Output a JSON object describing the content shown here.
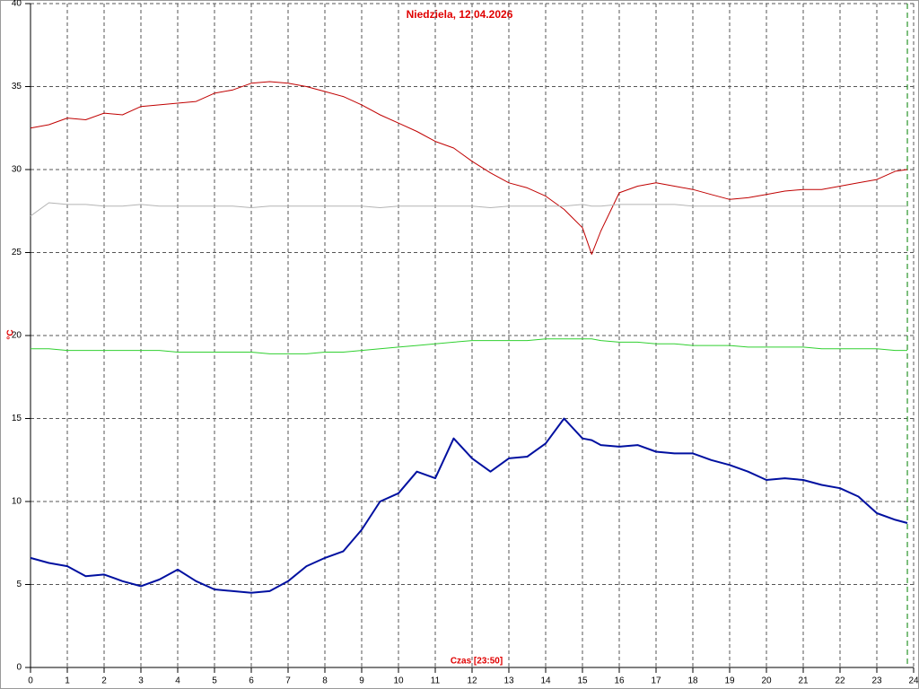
{
  "chart_data": {
    "type": "line",
    "title": "Niedziela, 12.04.2026",
    "y_label": "°C",
    "x_label": "Czas [23:50]",
    "x": [
      0,
      0.5,
      1,
      1.5,
      2,
      2.5,
      3,
      3.5,
      4,
      4.5,
      5,
      5.5,
      6,
      6.5,
      7,
      7.5,
      8,
      8.5,
      9,
      9.5,
      10,
      10.5,
      11,
      11.5,
      12,
      12.5,
      13,
      13.5,
      14,
      14.5,
      15,
      15.25,
      15.5,
      16,
      16.5,
      17,
      17.5,
      18,
      18.5,
      19,
      19.5,
      20,
      20.5,
      21,
      21.5,
      22,
      22.5,
      23,
      23.5,
      23.83
    ],
    "series": [
      {
        "color": "#c00000",
        "width": 1,
        "values": [
          32.5,
          32.7,
          33.1,
          33.0,
          33.4,
          33.3,
          33.8,
          33.9,
          34.0,
          34.1,
          34.6,
          34.8,
          35.2,
          35.3,
          35.2,
          35.0,
          34.7,
          34.4,
          33.9,
          33.3,
          32.8,
          32.3,
          31.7,
          31.3,
          30.5,
          29.8,
          29.2,
          28.9,
          28.4,
          27.6,
          26.5,
          24.9,
          26.3,
          28.6,
          29.0,
          29.2,
          29.0,
          28.8,
          28.5,
          28.2,
          28.3,
          28.5,
          28.7,
          28.8,
          28.8,
          29.0,
          29.2,
          29.4,
          29.9,
          30.0
        ]
      },
      {
        "color": "#b4b4b4",
        "width": 1,
        "values": [
          27.2,
          28.0,
          27.9,
          27.9,
          27.8,
          27.8,
          27.9,
          27.8,
          27.8,
          27.8,
          27.8,
          27.8,
          27.7,
          27.8,
          27.8,
          27.8,
          27.8,
          27.8,
          27.8,
          27.7,
          27.8,
          27.8,
          27.8,
          27.8,
          27.8,
          27.7,
          27.8,
          27.8,
          27.8,
          27.8,
          27.9,
          27.8,
          27.8,
          27.9,
          27.9,
          27.9,
          27.9,
          27.8,
          27.8,
          27.8,
          27.8,
          27.8,
          27.8,
          27.8,
          27.8,
          27.8,
          27.8,
          27.8,
          27.8,
          27.8
        ]
      },
      {
        "color": "#30d030",
        "width": 1,
        "values": [
          19.2,
          19.2,
          19.1,
          19.1,
          19.1,
          19.1,
          19.1,
          19.1,
          19.0,
          19.0,
          19.0,
          19.0,
          19.0,
          18.9,
          18.9,
          18.9,
          19.0,
          19.0,
          19.1,
          19.2,
          19.3,
          19.4,
          19.5,
          19.6,
          19.7,
          19.7,
          19.7,
          19.7,
          19.8,
          19.8,
          19.8,
          19.8,
          19.7,
          19.6,
          19.6,
          19.5,
          19.5,
          19.4,
          19.4,
          19.4,
          19.3,
          19.3,
          19.3,
          19.3,
          19.2,
          19.2,
          19.2,
          19.2,
          19.1,
          19.1
        ]
      },
      {
        "color": "#0010a0",
        "width": 2,
        "values": [
          6.6,
          6.3,
          6.1,
          5.5,
          5.6,
          5.2,
          4.9,
          5.3,
          5.9,
          5.2,
          4.7,
          4.6,
          4.5,
          4.6,
          5.2,
          6.1,
          6.6,
          7.0,
          8.3,
          10.0,
          10.5,
          11.8,
          11.4,
          13.8,
          12.6,
          11.8,
          12.6,
          12.7,
          13.5,
          15.0,
          13.8,
          13.7,
          13.4,
          13.3,
          13.4,
          13.0,
          12.9,
          12.9,
          12.5,
          12.2,
          11.8,
          11.3,
          11.4,
          11.3,
          11.0,
          10.8,
          10.3,
          9.3,
          8.9,
          8.7
        ]
      }
    ],
    "marker_x": 23.83,
    "marker_color": "#008000",
    "xlim": [
      0,
      24
    ],
    "xticks": [
      0,
      1,
      2,
      3,
      4,
      5,
      6,
      7,
      8,
      9,
      10,
      11,
      12,
      13,
      14,
      15,
      16,
      17,
      18,
      19,
      20,
      21,
      22,
      23,
      24
    ],
    "ylim": [
      0,
      40
    ],
    "yticks": [
      0,
      5,
      10,
      15,
      20,
      25,
      30,
      35,
      40
    ],
    "grid": true
  }
}
